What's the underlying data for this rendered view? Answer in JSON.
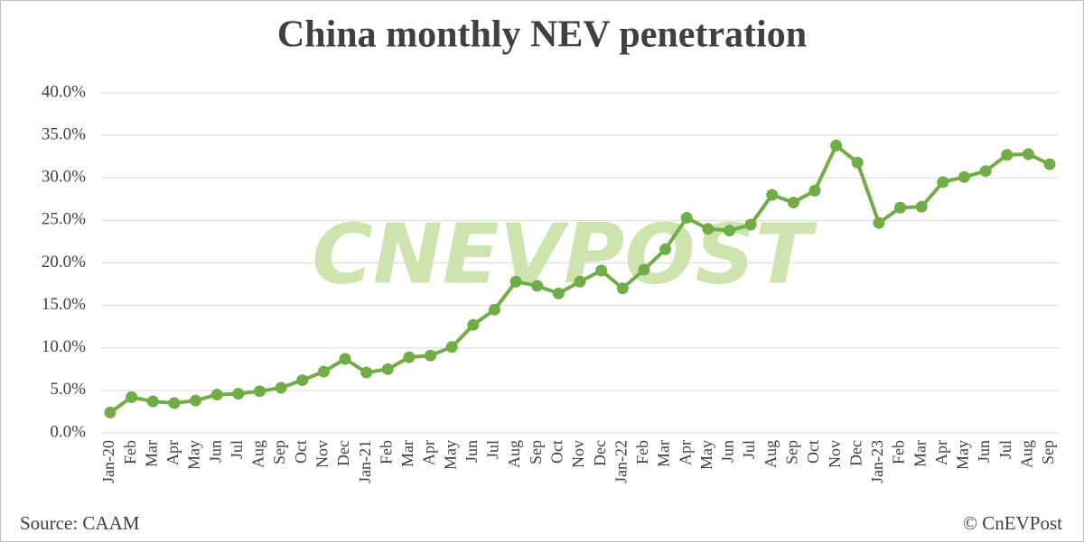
{
  "chart_data": {
    "type": "line",
    "title": "China monthly NEV penetration",
    "watermark": "CNEVPOST",
    "source": "Source: CAAM",
    "credit": "© CnEVPost",
    "categories": [
      "Jan-20",
      "Feb",
      "Mar",
      "Apr",
      "May",
      "Jun",
      "Jul",
      "Aug",
      "Sep",
      "Oct",
      "Nov",
      "Dec",
      "Jan-21",
      "Feb",
      "Mar",
      "Apr",
      "May",
      "Jun",
      "Jul",
      "Aug",
      "Sep",
      "Oct",
      "Nov",
      "Dec",
      "Jan-22",
      "Feb",
      "Mar",
      "Apr",
      "May",
      "Jun",
      "Jul",
      "Aug",
      "Sep",
      "Oct",
      "Nov",
      "Dec",
      "Jan-23",
      "Feb",
      "Mar",
      "Apr",
      "May",
      "Jun",
      "Jul",
      "Aug",
      "Sep"
    ],
    "values": [
      2.4,
      4.2,
      3.7,
      3.5,
      3.8,
      4.5,
      4.6,
      4.9,
      5.3,
      6.2,
      7.2,
      8.7,
      7.1,
      7.5,
      8.9,
      9.1,
      10.1,
      12.7,
      14.5,
      17.8,
      17.3,
      16.4,
      17.8,
      19.1,
      17.0,
      19.2,
      21.6,
      25.3,
      24.0,
      23.8,
      24.5,
      28.0,
      27.1,
      28.5,
      33.8,
      31.8,
      24.7,
      26.5,
      26.6,
      29.5,
      30.1,
      30.8,
      32.7,
      32.8,
      31.6
    ],
    "color": "#70ad47",
    "ylim": [
      0,
      40
    ],
    "yticks": [
      {
        "value": 0,
        "label": "0.0%"
      },
      {
        "value": 5,
        "label": "5.0%"
      },
      {
        "value": 10,
        "label": "10.0%"
      },
      {
        "value": 15,
        "label": "15.0%"
      },
      {
        "value": 20,
        "label": "20.0%"
      },
      {
        "value": 25,
        "label": "25.0%"
      },
      {
        "value": 30,
        "label": "30.0%"
      },
      {
        "value": 35,
        "label": "35.0%"
      },
      {
        "value": 40,
        "label": "40.0%"
      }
    ],
    "grid": true
  }
}
